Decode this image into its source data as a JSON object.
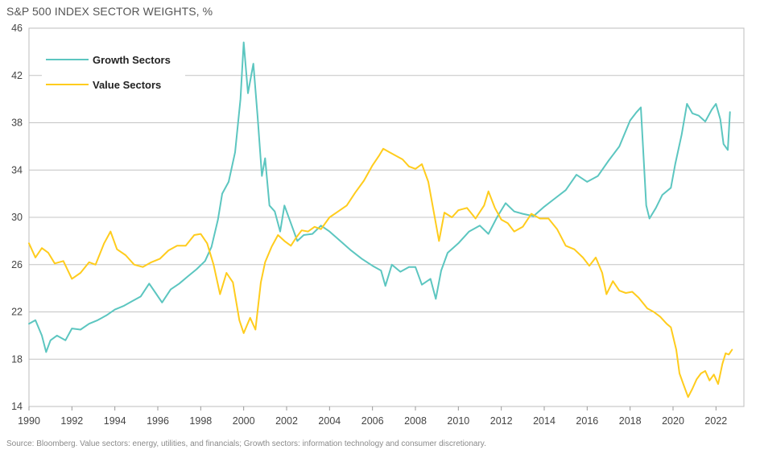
{
  "chart_data": {
    "type": "line",
    "title": "S&P 500 INDEX SECTOR WEIGHTS, %",
    "source": "Source: Bloomberg. Value sectors: energy, utilities, and financials; Growth sectors: information technology and consumer discretionary.",
    "xlabel": "",
    "ylabel": "",
    "xlim": [
      1990,
      2023.3
    ],
    "ylim": [
      14,
      46
    ],
    "x_ticks": [
      "1990",
      "1992",
      "1994",
      "1996",
      "1998",
      "2000",
      "2002",
      "2004",
      "2006",
      "2008",
      "2010",
      "2012",
      "2014",
      "2016",
      "2018",
      "2020",
      "2022"
    ],
    "y_ticks": [
      "14",
      "18",
      "22",
      "26",
      "30",
      "34",
      "38",
      "42",
      "46"
    ],
    "grid": "horizontal",
    "legend_position": "top-left",
    "series": [
      {
        "name": "Growth Sectors",
        "color": "#5cc6c0",
        "points": [
          [
            1990.0,
            21.0
          ],
          [
            1990.3,
            21.3
          ],
          [
            1990.6,
            20.0
          ],
          [
            1990.8,
            18.6
          ],
          [
            1991.0,
            19.6
          ],
          [
            1991.3,
            20.0
          ],
          [
            1991.7,
            19.6
          ],
          [
            1992.0,
            20.6
          ],
          [
            1992.4,
            20.5
          ],
          [
            1992.8,
            21.0
          ],
          [
            1993.2,
            21.3
          ],
          [
            1993.6,
            21.7
          ],
          [
            1994.0,
            22.2
          ],
          [
            1994.4,
            22.5
          ],
          [
            1994.8,
            22.9
          ],
          [
            1995.2,
            23.3
          ],
          [
            1995.6,
            24.4
          ],
          [
            1995.9,
            23.6
          ],
          [
            1996.2,
            22.8
          ],
          [
            1996.6,
            23.9
          ],
          [
            1997.0,
            24.4
          ],
          [
            1997.4,
            25.0
          ],
          [
            1997.8,
            25.6
          ],
          [
            1998.2,
            26.3
          ],
          [
            1998.5,
            27.5
          ],
          [
            1998.8,
            29.8
          ],
          [
            1999.0,
            32.0
          ],
          [
            1999.3,
            33.0
          ],
          [
            1999.6,
            35.5
          ],
          [
            1999.85,
            40.0
          ],
          [
            2000.0,
            44.8
          ],
          [
            2000.2,
            40.5
          ],
          [
            2000.45,
            43.0
          ],
          [
            2000.65,
            38.5
          ],
          [
            2000.85,
            33.5
          ],
          [
            2001.0,
            35.0
          ],
          [
            2001.2,
            31.0
          ],
          [
            2001.45,
            30.5
          ],
          [
            2001.7,
            28.8
          ],
          [
            2001.9,
            31.0
          ],
          [
            2002.2,
            29.5
          ],
          [
            2002.5,
            28.0
          ],
          [
            2002.8,
            28.5
          ],
          [
            2003.2,
            28.6
          ],
          [
            2003.6,
            29.3
          ],
          [
            2004.0,
            28.8
          ],
          [
            2004.5,
            28.0
          ],
          [
            2005.0,
            27.2
          ],
          [
            2005.5,
            26.5
          ],
          [
            2006.0,
            25.9
          ],
          [
            2006.4,
            25.5
          ],
          [
            2006.6,
            24.2
          ],
          [
            2006.9,
            26.0
          ],
          [
            2007.3,
            25.4
          ],
          [
            2007.7,
            25.8
          ],
          [
            2008.0,
            25.8
          ],
          [
            2008.3,
            24.3
          ],
          [
            2008.7,
            24.8
          ],
          [
            2008.95,
            23.1
          ],
          [
            2009.2,
            25.5
          ],
          [
            2009.5,
            27.0
          ],
          [
            2010.0,
            27.8
          ],
          [
            2010.5,
            28.8
          ],
          [
            2011.0,
            29.3
          ],
          [
            2011.4,
            28.6
          ],
          [
            2011.8,
            30.0
          ],
          [
            2012.2,
            31.2
          ],
          [
            2012.6,
            30.5
          ],
          [
            2013.0,
            30.3
          ],
          [
            2013.5,
            30.1
          ],
          [
            2014.0,
            30.9
          ],
          [
            2014.5,
            31.6
          ],
          [
            2015.0,
            32.3
          ],
          [
            2015.5,
            33.6
          ],
          [
            2016.0,
            33.0
          ],
          [
            2016.5,
            33.5
          ],
          [
            2017.0,
            34.8
          ],
          [
            2017.5,
            36.0
          ],
          [
            2018.0,
            38.2
          ],
          [
            2018.3,
            38.9
          ],
          [
            2018.5,
            39.3
          ],
          [
            2018.75,
            31.0
          ],
          [
            2018.9,
            29.9
          ],
          [
            2019.2,
            30.8
          ],
          [
            2019.5,
            31.9
          ],
          [
            2019.9,
            32.5
          ],
          [
            2020.1,
            34.5
          ],
          [
            2020.4,
            37.0
          ],
          [
            2020.65,
            39.6
          ],
          [
            2020.9,
            38.8
          ],
          [
            2021.2,
            38.6
          ],
          [
            2021.5,
            38.1
          ],
          [
            2021.8,
            39.1
          ],
          [
            2022.0,
            39.6
          ],
          [
            2022.2,
            38.3
          ],
          [
            2022.35,
            36.2
          ],
          [
            2022.55,
            35.7
          ],
          [
            2022.65,
            38.9
          ]
        ]
      },
      {
        "name": "Value Sectors",
        "color": "#ffcc1d",
        "points": [
          [
            1990.0,
            27.8
          ],
          [
            1990.3,
            26.6
          ],
          [
            1990.6,
            27.4
          ],
          [
            1990.9,
            27.0
          ],
          [
            1991.2,
            26.1
          ],
          [
            1991.6,
            26.3
          ],
          [
            1992.0,
            24.8
          ],
          [
            1992.4,
            25.3
          ],
          [
            1992.8,
            26.2
          ],
          [
            1993.1,
            26.0
          ],
          [
            1993.5,
            27.8
          ],
          [
            1993.8,
            28.8
          ],
          [
            1994.1,
            27.3
          ],
          [
            1994.5,
            26.8
          ],
          [
            1994.9,
            26.0
          ],
          [
            1995.3,
            25.8
          ],
          [
            1995.7,
            26.2
          ],
          [
            1996.1,
            26.5
          ],
          [
            1996.5,
            27.2
          ],
          [
            1996.9,
            27.6
          ],
          [
            1997.3,
            27.6
          ],
          [
            1997.7,
            28.5
          ],
          [
            1998.0,
            28.6
          ],
          [
            1998.3,
            27.8
          ],
          [
            1998.6,
            26.0
          ],
          [
            1998.9,
            23.5
          ],
          [
            1999.2,
            25.3
          ],
          [
            1999.5,
            24.5
          ],
          [
            1999.8,
            21.3
          ],
          [
            2000.0,
            20.2
          ],
          [
            2000.3,
            21.5
          ],
          [
            2000.55,
            20.5
          ],
          [
            2000.8,
            24.5
          ],
          [
            2001.0,
            26.2
          ],
          [
            2001.3,
            27.5
          ],
          [
            2001.6,
            28.5
          ],
          [
            2001.9,
            28.0
          ],
          [
            2002.2,
            27.6
          ],
          [
            2002.45,
            28.3
          ],
          [
            2002.7,
            28.9
          ],
          [
            2003.0,
            28.8
          ],
          [
            2003.3,
            29.2
          ],
          [
            2003.6,
            29.0
          ],
          [
            2004.0,
            30.0
          ],
          [
            2004.4,
            30.5
          ],
          [
            2004.8,
            31.0
          ],
          [
            2005.2,
            32.1
          ],
          [
            2005.6,
            33.1
          ],
          [
            2006.0,
            34.4
          ],
          [
            2006.3,
            35.2
          ],
          [
            2006.5,
            35.8
          ],
          [
            2006.8,
            35.5
          ],
          [
            2007.1,
            35.2
          ],
          [
            2007.4,
            34.9
          ],
          [
            2007.7,
            34.3
          ],
          [
            2008.0,
            34.1
          ],
          [
            2008.3,
            34.5
          ],
          [
            2008.6,
            33.0
          ],
          [
            2008.9,
            30.0
          ],
          [
            2009.1,
            28.0
          ],
          [
            2009.35,
            30.4
          ],
          [
            2009.7,
            30.0
          ],
          [
            2010.0,
            30.6
          ],
          [
            2010.4,
            30.8
          ],
          [
            2010.8,
            29.9
          ],
          [
            2011.2,
            31.0
          ],
          [
            2011.4,
            32.2
          ],
          [
            2011.7,
            30.8
          ],
          [
            2012.0,
            29.8
          ],
          [
            2012.3,
            29.5
          ],
          [
            2012.6,
            28.8
          ],
          [
            2013.0,
            29.2
          ],
          [
            2013.4,
            30.3
          ],
          [
            2013.8,
            29.9
          ],
          [
            2014.2,
            29.9
          ],
          [
            2014.6,
            29.0
          ],
          [
            2015.0,
            27.6
          ],
          [
            2015.4,
            27.3
          ],
          [
            2015.8,
            26.6
          ],
          [
            2016.1,
            25.9
          ],
          [
            2016.4,
            26.6
          ],
          [
            2016.7,
            25.3
          ],
          [
            2016.9,
            23.5
          ],
          [
            2017.2,
            24.6
          ],
          [
            2017.5,
            23.8
          ],
          [
            2017.8,
            23.6
          ],
          [
            2018.1,
            23.7
          ],
          [
            2018.4,
            23.2
          ],
          [
            2018.8,
            22.3
          ],
          [
            2019.1,
            22.0
          ],
          [
            2019.4,
            21.6
          ],
          [
            2019.7,
            21.0
          ],
          [
            2019.9,
            20.7
          ],
          [
            2020.15,
            18.8
          ],
          [
            2020.3,
            16.8
          ],
          [
            2020.5,
            15.8
          ],
          [
            2020.7,
            14.8
          ],
          [
            2020.9,
            15.5
          ],
          [
            2021.1,
            16.3
          ],
          [
            2021.3,
            16.8
          ],
          [
            2021.5,
            17.0
          ],
          [
            2021.7,
            16.2
          ],
          [
            2021.9,
            16.7
          ],
          [
            2022.1,
            15.9
          ],
          [
            2022.3,
            17.6
          ],
          [
            2022.45,
            18.5
          ],
          [
            2022.6,
            18.4
          ],
          [
            2022.75,
            18.8
          ]
        ]
      }
    ]
  }
}
